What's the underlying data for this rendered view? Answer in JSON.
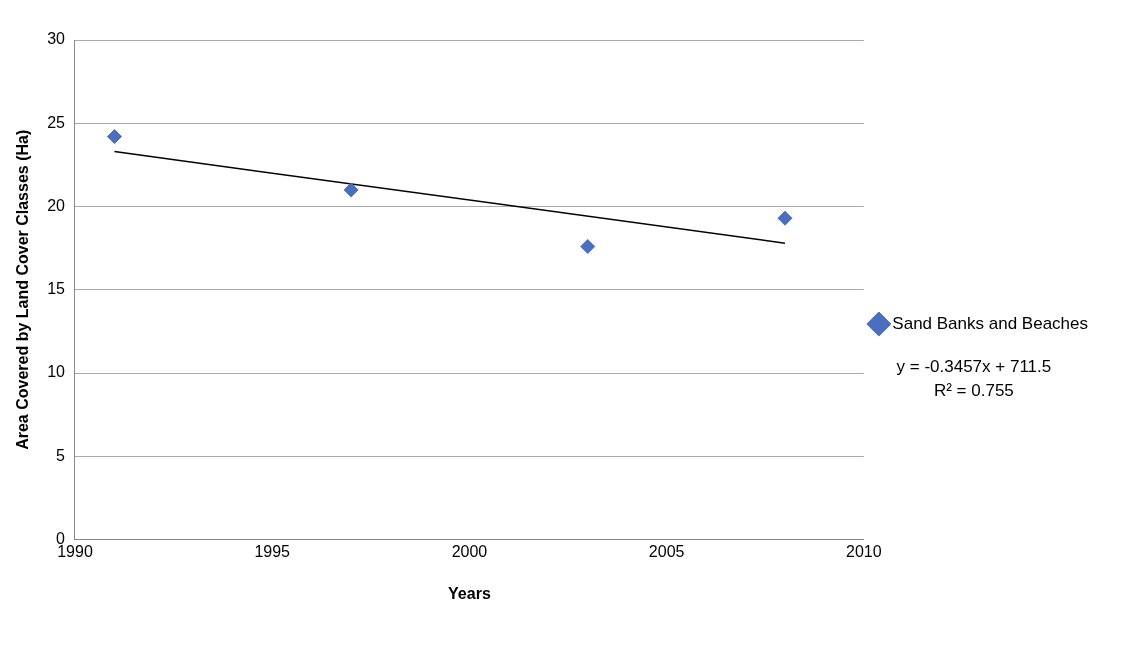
{
  "chart_data": {
    "type": "scatter",
    "xlabel": "Years",
    "ylabel": "Area Covered by Land Cover Classes (Ha)",
    "xlim": [
      1990,
      2010
    ],
    "xticks": [
      1990,
      1995,
      2000,
      2005,
      2010
    ],
    "ylim": [
      0,
      30
    ],
    "yticks": [
      0,
      5,
      10,
      15,
      20,
      25,
      30
    ],
    "grid": "y",
    "legend": "right",
    "marker": "diamond",
    "series": [
      {
        "name": "Sand Banks and Beaches",
        "color": "#4a6fbf",
        "x": [
          1991,
          1997,
          2003,
          2008
        ],
        "values": [
          24.2,
          21.0,
          17.6,
          19.3
        ]
      },
      {
        "type": "line",
        "color": "#000000",
        "x": [
          1991,
          2008
        ],
        "values": [
          23.3,
          17.8
        ],
        "marker": "none"
      }
    ],
    "annotations": [
      "y = -0.3457x + 711.5",
      "R² = 0.755"
    ]
  }
}
